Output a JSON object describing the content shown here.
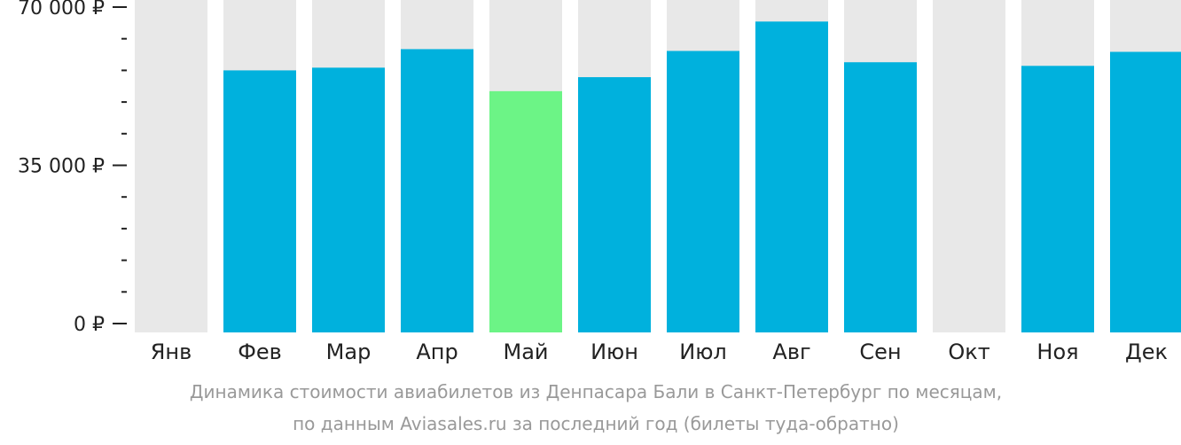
{
  "chart_data": {
    "type": "bar",
    "categories": [
      "Янв",
      "Фев",
      "Мар",
      "Апр",
      "Май",
      "Июн",
      "Июл",
      "Авг",
      "Сен",
      "Окт",
      "Ноя",
      "Дек"
    ],
    "values": [
      null,
      56000,
      56600,
      60700,
      51400,
      54500,
      60300,
      66800,
      57800,
      null,
      57000,
      60100
    ],
    "highlight_category": "Май",
    "ylim": [
      0,
      70000
    ],
    "yticks": [
      {
        "value": 0,
        "label": "0 ₽"
      },
      {
        "value": 35000,
        "label": "35 000 ₽"
      },
      {
        "value": 70000,
        "label": "70 000 ₽"
      }
    ],
    "minor_ticks": [
      7000,
      14000,
      21000,
      28000,
      42000,
      49000,
      56000,
      63000
    ],
    "grid": false,
    "legend": "none",
    "colors": {
      "bar": "#00b1dd",
      "highlight": "#6cf486",
      "background_bar": "#e8e8e8",
      "axis_text": "#222222"
    },
    "caption_line1": "Динамика стоимости авиабилетов из Денпасара Бали в Санкт-Петербург по месяцам,",
    "caption_line2": "по данным Aviasales.ru за последний год (билеты туда-обратно)"
  }
}
